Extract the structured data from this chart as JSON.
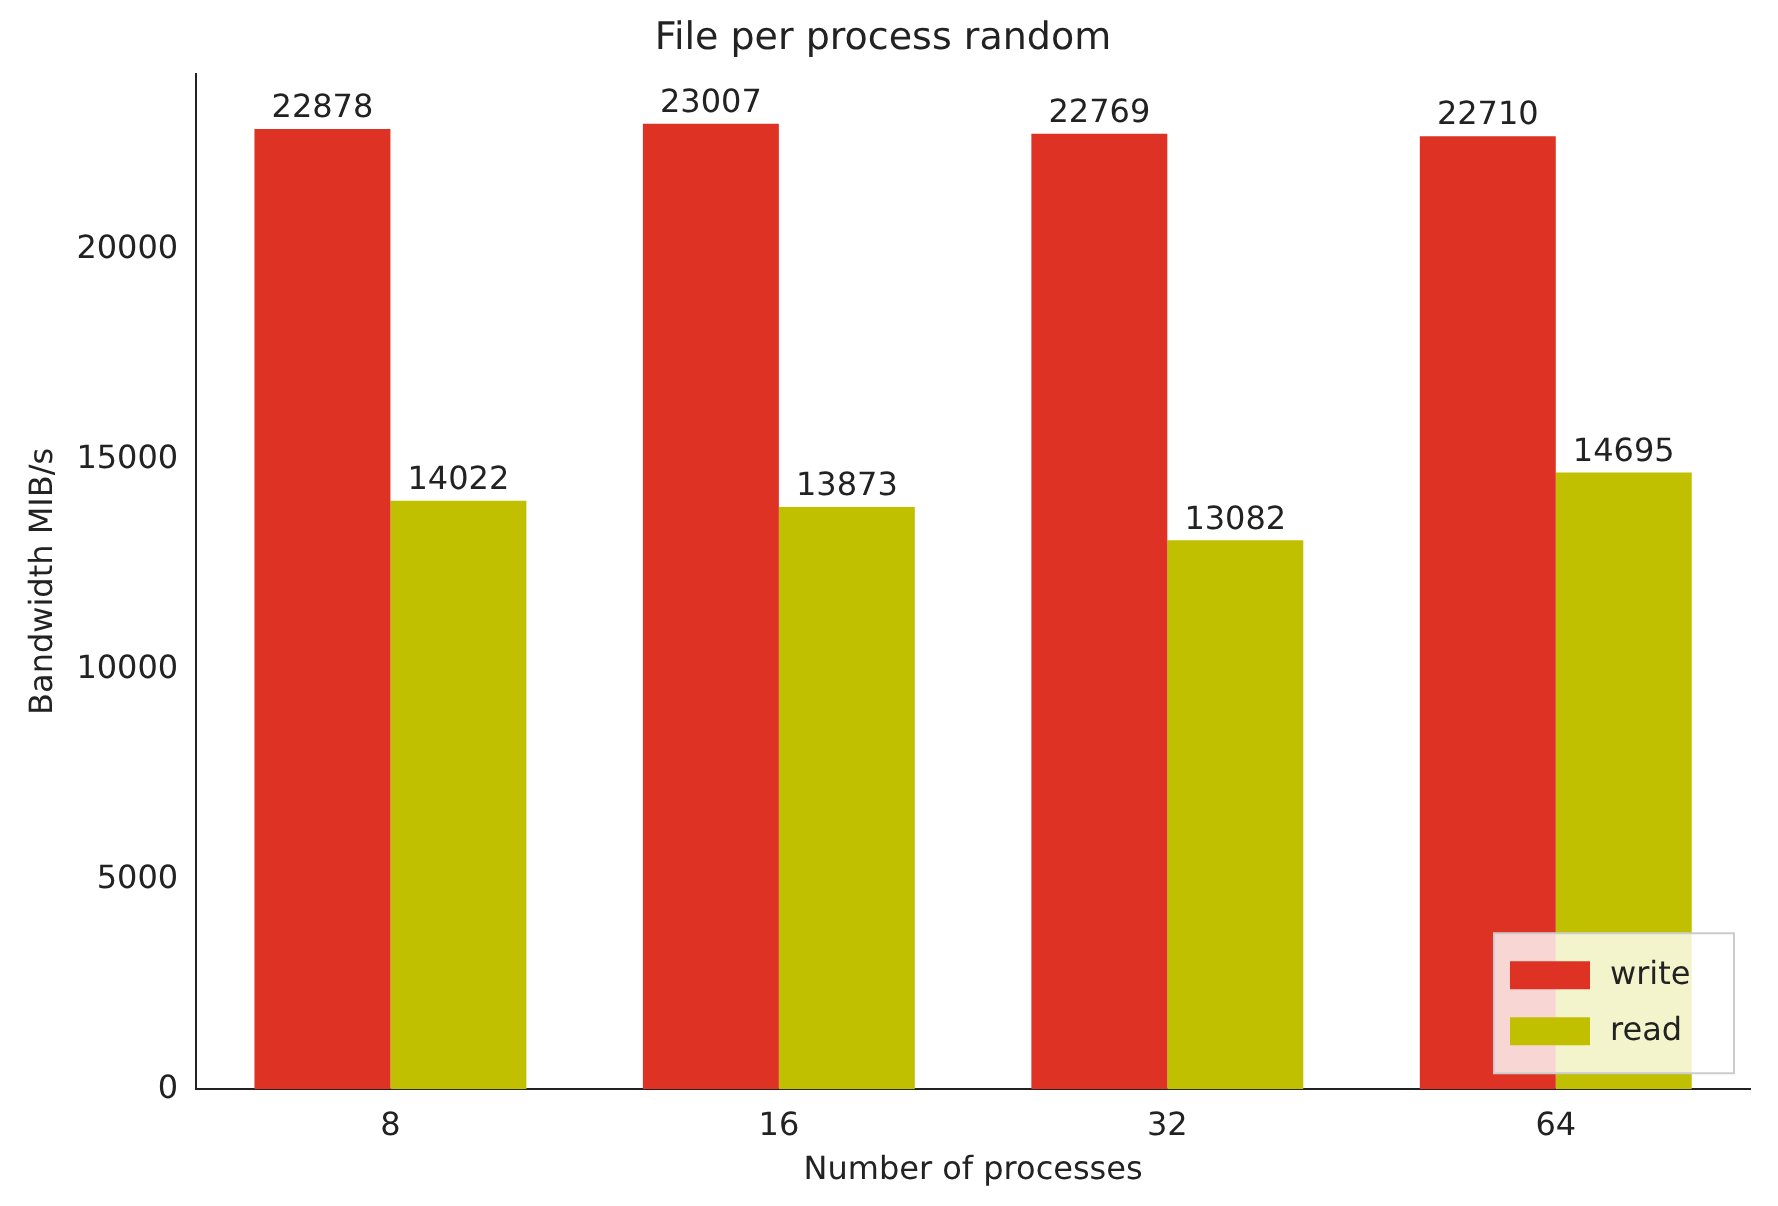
{
  "chart_data": {
    "type": "bar",
    "title": "File per process random",
    "xlabel": "Number of processes",
    "ylabel": "Bandwidth MIB/s",
    "categories": [
      "8",
      "16",
      "32",
      "64"
    ],
    "series": [
      {
        "name": "write",
        "color": "#dd3224",
        "values": [
          22878,
          23007,
          22769,
          22710
        ]
      },
      {
        "name": "read",
        "color": "#c0c000",
        "values": [
          14022,
          13873,
          13082,
          14695
        ]
      }
    ],
    "ylim": [
      0,
      24200
    ],
    "yticks": [
      0,
      5000,
      10000,
      15000,
      20000
    ],
    "grid": false,
    "legend": "bottom right",
    "data_labels": true
  }
}
